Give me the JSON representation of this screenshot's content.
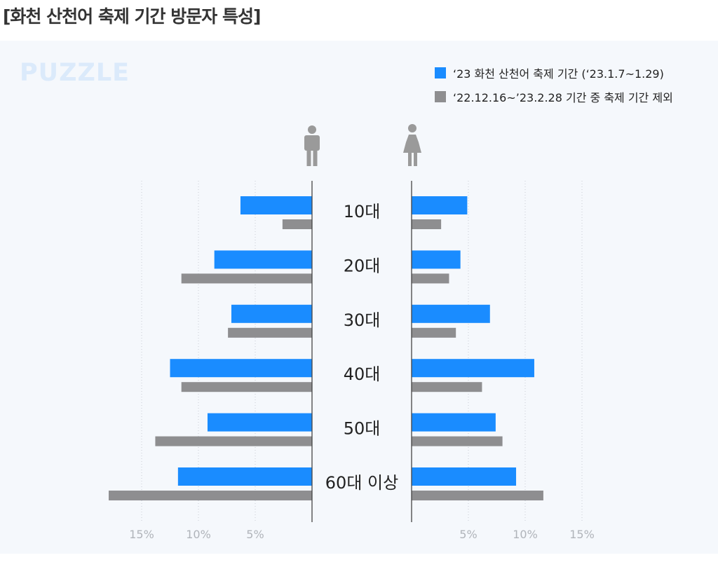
{
  "page": {
    "title": "[화천 산천어 축제 기간 방문자 특성]",
    "logo": "PUZZLE"
  },
  "legend": [
    {
      "label": "‘23 화천 산천어 축제 기간 (‘23.1.7~1.29)",
      "color": "#1a8cff"
    },
    {
      "label": "‘22.12.16~’23.2.28 기간 중 축제 기간 제외",
      "color": "#8e8e90"
    }
  ],
  "icons": {
    "left": "male-person-icon",
    "right": "female-person-icon"
  },
  "chart_data": {
    "type": "bar",
    "orientation": "horizontal",
    "layout": "population-pyramid",
    "categories": [
      "10대",
      "20대",
      "30대",
      "40대",
      "50대",
      "60대 이상"
    ],
    "male": [
      {
        "name": "‘23 화천 산천어 축제 기간 (‘23.1.7~1.29)",
        "values": [
          6.3,
          8.6,
          7.1,
          12.5,
          9.2,
          11.8
        ],
        "color": "#1a8cff"
      },
      {
        "name": "‘22.12.16~’23.2.28 기간 중 축제 기간 제외",
        "values": [
          2.6,
          11.5,
          7.4,
          11.5,
          13.8,
          17.9
        ],
        "color": "#8e8e90"
      }
    ],
    "female": [
      {
        "name": "‘23 화천 산천어 축제 기간 (‘23.1.7~1.29)",
        "values": [
          4.9,
          4.3,
          6.9,
          10.8,
          7.4,
          9.2
        ],
        "color": "#1a8cff"
      },
      {
        "name": "‘22.12.16~’23.2.28 기간 중 축제 기간 제외",
        "values": [
          2.6,
          3.3,
          3.9,
          6.2,
          8.0,
          11.6
        ],
        "color": "#8e8e90"
      }
    ],
    "x_ticks": [
      15,
      10,
      5
    ],
    "x_tick_labels": [
      "15%",
      "10%",
      "5%"
    ],
    "xlim": [
      0,
      18
    ],
    "grid": true,
    "legend_position": "top-right"
  }
}
